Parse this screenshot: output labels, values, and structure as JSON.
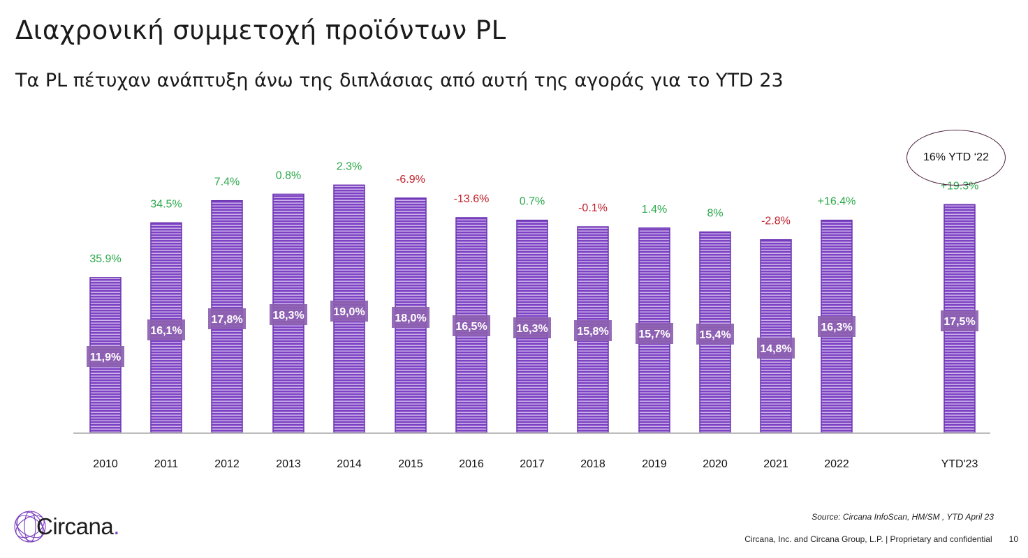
{
  "header": {
    "title": "Διαχρονική συμμετοχή προϊόντων PL",
    "subtitle": "Τα PL πέτυχαν ανάπτυξη άνω της διπλάσιας από αυτή της αγοράς για το YTD 23"
  },
  "callout": {
    "text": "16% YTD ‘22"
  },
  "footer": {
    "source": "Source: Circana InfoScan, HM/SM , YTD April 23",
    "company": "Circana, Inc. and Circana Group, L.P. |  Proprietary and confidential",
    "page_number": "10"
  },
  "logo": {
    "name": "Circana",
    "dot": "."
  },
  "colors": {
    "bar": "#7d42c4",
    "bar_stripe": "#ffffff",
    "label_box": "#8c5fb0",
    "growth_positive": "#2aa84a",
    "growth_negative": "#c0202a"
  },
  "chart_data": {
    "type": "bar",
    "categories": [
      "2010",
      "2011",
      "2012",
      "2013",
      "2014",
      "2015",
      "2016",
      "2017",
      "2018",
      "2019",
      "2020",
      "2021",
      "2022",
      "YTD'23"
    ],
    "values": [
      11.9,
      16.1,
      17.8,
      18.3,
      19.0,
      18.0,
      16.5,
      16.3,
      15.8,
      15.7,
      15.4,
      14.8,
      16.3,
      17.5
    ],
    "value_labels": [
      "11,9%",
      "16,1%",
      "17,8%",
      "18,3%",
      "19,0%",
      "18,0%",
      "16,5%",
      "16,3%",
      "15,8%",
      "15,7%",
      "15,4%",
      "14,8%",
      "16,3%",
      "17,5%"
    ],
    "growth_labels": [
      "35.9%",
      "34.5%",
      "7.4%",
      "0.8%",
      "2.3%",
      "-6.9%",
      "-13.6%",
      "0.7%",
      "-0.1%",
      "1.4%",
      "8%",
      "-2.8%",
      "+16.4%",
      "+19.3%"
    ],
    "growth_sign": [
      "pos",
      "pos",
      "pos",
      "pos",
      "pos",
      "neg",
      "neg",
      "pos",
      "neg",
      "pos",
      "pos",
      "neg",
      "pos",
      "pos"
    ],
    "ylim": [
      0,
      20
    ],
    "grid": false,
    "legend": "none"
  }
}
